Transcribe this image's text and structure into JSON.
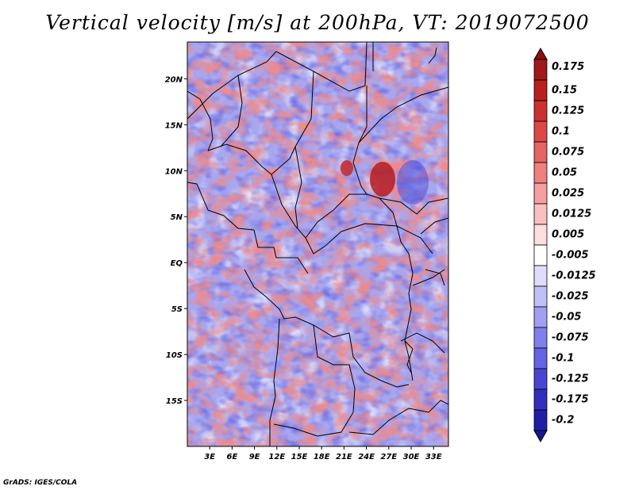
{
  "title": "Vertical velocity [m/s] at 200hPa, VT: 2019072500",
  "credit": "GrADS: IGES/COLA",
  "map": {
    "lon_range": [
      0,
      35
    ],
    "lat_range": [
      -20,
      24
    ],
    "lat_ticks": [
      {
        "value": 20,
        "label": "20N"
      },
      {
        "value": 15,
        "label": "15N"
      },
      {
        "value": 10,
        "label": "10N"
      },
      {
        "value": 5,
        "label": "5N"
      },
      {
        "value": 0,
        "label": "EQ"
      },
      {
        "value": -5,
        "label": "5S"
      },
      {
        "value": -10,
        "label": "10S"
      },
      {
        "value": -15,
        "label": "15S"
      }
    ],
    "lon_ticks": [
      {
        "value": 3,
        "label": "3E"
      },
      {
        "value": 6,
        "label": "6E"
      },
      {
        "value": 9,
        "label": "9E"
      },
      {
        "value": 12,
        "label": "12E"
      },
      {
        "value": 15,
        "label": "15E"
      },
      {
        "value": 18,
        "label": "18E"
      },
      {
        "value": 21,
        "label": "21E"
      },
      {
        "value": 24,
        "label": "24E"
      },
      {
        "value": 27,
        "label": "27E"
      },
      {
        "value": 30,
        "label": "30E"
      },
      {
        "value": 33,
        "label": "33E"
      }
    ]
  },
  "colorbar": {
    "levels": [
      {
        "label": "0.175",
        "color": "#a01818"
      },
      {
        "label": "0.15",
        "color": "#b82020"
      },
      {
        "label": "0.125",
        "color": "#cc3030"
      },
      {
        "label": "0.1",
        "color": "#dc4848"
      },
      {
        "label": "0.075",
        "color": "#e66464"
      },
      {
        "label": "0.05",
        "color": "#ee8080"
      },
      {
        "label": "0.025",
        "color": "#f4a0a0"
      },
      {
        "label": "0.0125",
        "color": "#f8c0c0"
      },
      {
        "label": "0.005",
        "color": "#fcdede"
      },
      {
        "label": "-0.005",
        "color": "#ffffff"
      },
      {
        "label": "-0.0125",
        "color": "#dedefc"
      },
      {
        "label": "-0.025",
        "color": "#c0c0f8"
      },
      {
        "label": "-0.05",
        "color": "#a0a0f2"
      },
      {
        "label": "-0.075",
        "color": "#8080ec"
      },
      {
        "label": "-0.1",
        "color": "#6464e2"
      },
      {
        "label": "-0.125",
        "color": "#4646d2"
      },
      {
        "label": "-0.175",
        "color": "#3030bc"
      },
      {
        "label": "-0.2",
        "color": "#1e1ea6"
      }
    ],
    "top_color": "#8c1010",
    "bottom_color": "#16168e",
    "top_extra": "#981414",
    "bottom_extra": "#1a1a9a"
  }
}
